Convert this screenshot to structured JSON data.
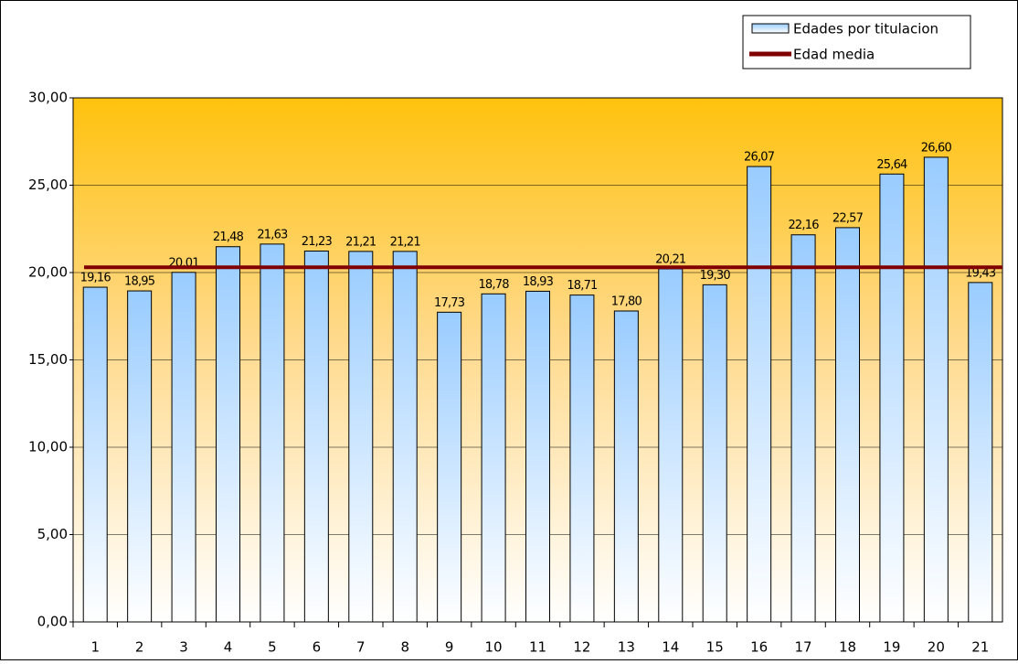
{
  "chart_data": {
    "type": "bar",
    "categories": [
      "1",
      "2",
      "3",
      "4",
      "5",
      "6",
      "7",
      "8",
      "9",
      "10",
      "11",
      "12",
      "13",
      "14",
      "15",
      "16",
      "17",
      "18",
      "19",
      "20",
      "21"
    ],
    "series": [
      {
        "name": "Edades por titulacion",
        "color": "#99ccff",
        "values": [
          19.16,
          18.95,
          20.01,
          21.48,
          21.63,
          21.23,
          21.21,
          21.21,
          17.73,
          18.78,
          18.93,
          18.71,
          17.8,
          20.21,
          19.3,
          26.07,
          22.16,
          22.57,
          25.64,
          26.6,
          19.43
        ],
        "value_labels": [
          "19,16",
          "18,95",
          "20,01",
          "21,48",
          "21,63",
          "21,23",
          "21,21",
          "21,21",
          "17,73",
          "18,78",
          "18,93",
          "18,71",
          "17,80",
          "20,21",
          "19,30",
          "26,07",
          "22,16",
          "22,57",
          "25,64",
          "26,60",
          "19,43"
        ]
      }
    ],
    "mean_line": {
      "name": "Edad media",
      "color": "#800000",
      "value": 20.3
    },
    "ylim": [
      0,
      30
    ],
    "yticks": [
      {
        "value": 0,
        "label": "0,00"
      },
      {
        "value": 5,
        "label": "5,00"
      },
      {
        "value": 10,
        "label": "10,00"
      },
      {
        "value": 15,
        "label": "15,00"
      },
      {
        "value": 20,
        "label": "20,00"
      },
      {
        "value": 25,
        "label": "25,00"
      },
      {
        "value": 30,
        "label": "30,00"
      }
    ],
    "grid": true,
    "legend": "top-right"
  }
}
